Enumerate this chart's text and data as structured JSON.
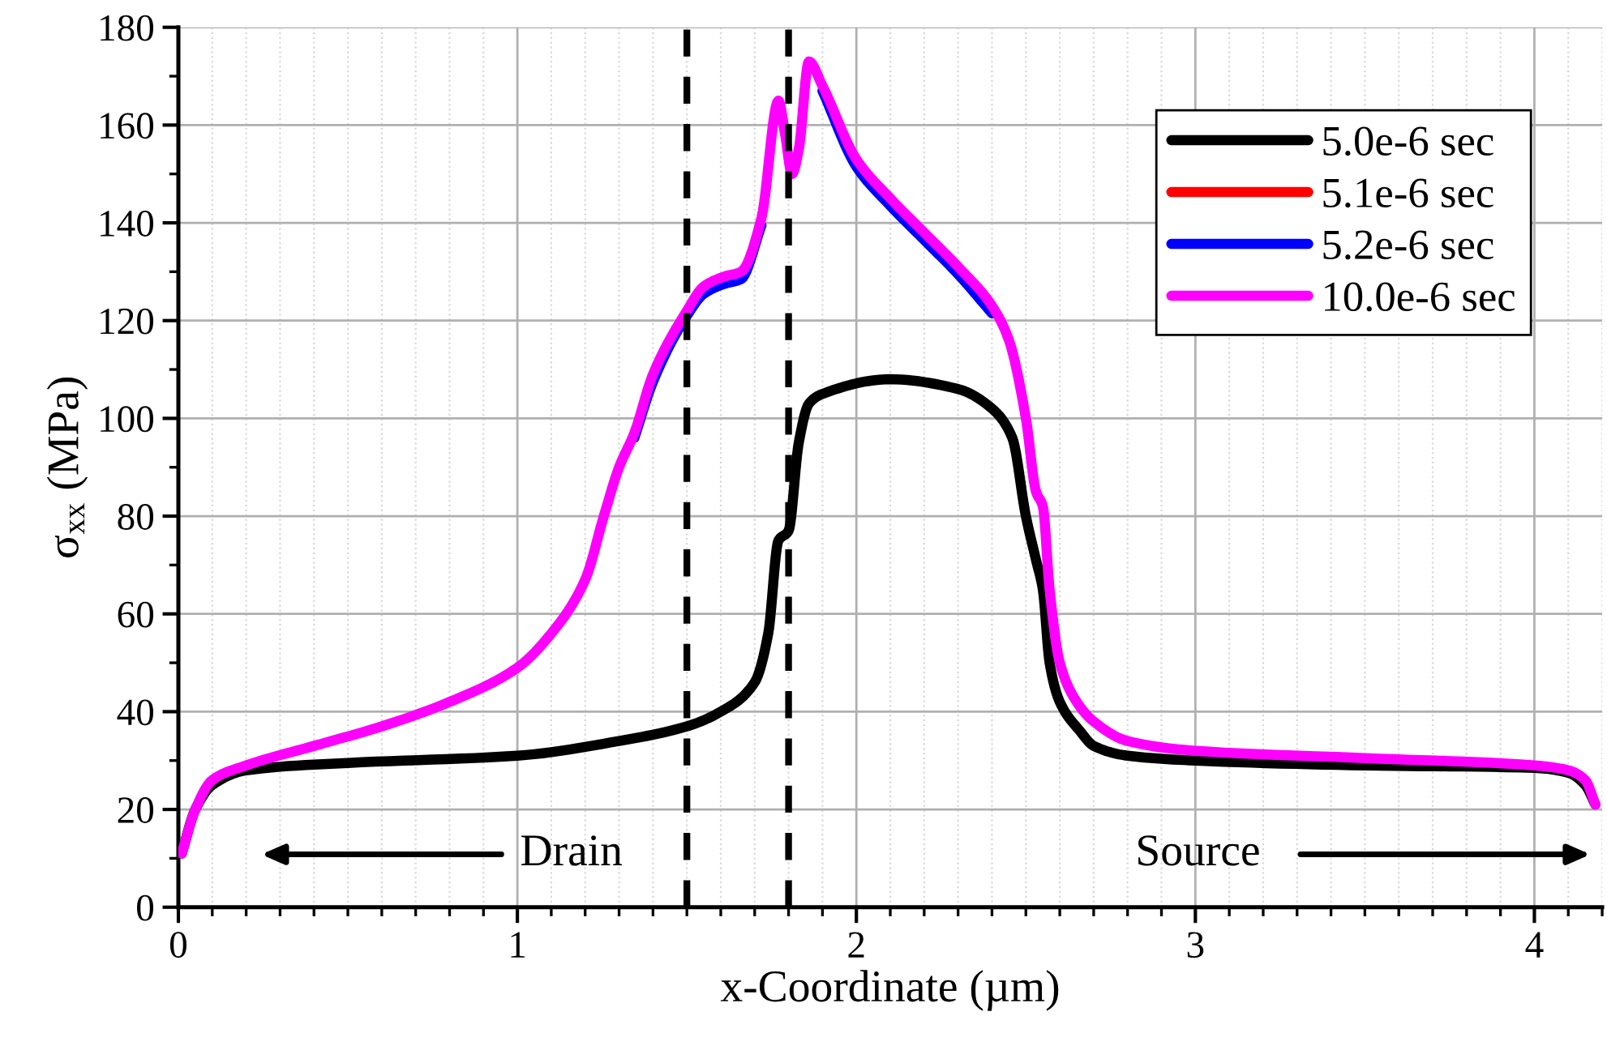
{
  "chart_data": {
    "type": "line",
    "xlabel": "x-Coordinate (µm)",
    "ylabel": "σ$_{xx}$ (MPa)",
    "xlim": [
      0,
      4.2
    ],
    "xticks": [
      0,
      1,
      2,
      3,
      4
    ],
    "ylim": [
      0,
      180
    ],
    "yticks": [
      0,
      20,
      40,
      60,
      80,
      100,
      120,
      140,
      160,
      180
    ],
    "grid": true,
    "legend": "top right",
    "line_style": "solid",
    "marker": "none",
    "series": [
      {
        "name": "5.0e-6 sec",
        "color": "#000000",
        "x": [
          0.01,
          0.05,
          0.1,
          0.2,
          0.5,
          1.0,
          1.3,
          1.5,
          1.6,
          1.7,
          1.74,
          1.77,
          1.8,
          1.83,
          1.86,
          1.9,
          2.1,
          2.3,
          2.4,
          2.46,
          2.5,
          2.53,
          2.55,
          2.57,
          2.6,
          2.66,
          2.7,
          2.8,
          3.0,
          3.5,
          4.0,
          4.1,
          4.15,
          4.18
        ],
        "values": [
          11,
          20,
          25,
          28,
          29.5,
          31,
          34,
          37,
          40,
          46,
          56,
          75,
          77,
          95,
          103,
          105,
          108,
          106,
          102,
          96,
          80,
          71,
          65,
          50,
          42,
          36,
          33,
          31,
          30,
          29,
          28.5,
          27.5,
          25,
          21
        ]
      },
      {
        "name": "5.1e-6 sec",
        "color": "#ff0000"
      },
      {
        "name": "5.2e-6 sec",
        "color": "#0000ff",
        "x": [
          1.345,
          1.4,
          1.5,
          1.55,
          1.61,
          1.66,
          1.72,
          1.8,
          1.9,
          2.0,
          2.1,
          2.2,
          2.3,
          2.4
        ],
        "values": [
          96,
          107.5,
          121,
          125.5,
          127.5,
          128.5,
          139.5,
          null,
          167,
          151.5,
          143.5,
          136.5,
          129.5,
          121.5
        ]
      },
      {
        "name": "10.0e-6 sec",
        "color": "#ff00ff",
        "x": [
          0.01,
          0.05,
          0.1,
          0.2,
          0.4,
          0.6,
          0.8,
          1.0,
          1.1,
          1.2,
          1.255,
          1.3,
          1.345,
          1.4,
          1.5,
          1.55,
          1.61,
          1.66,
          1.72,
          1.77,
          1.79,
          1.81,
          1.83,
          1.86,
          1.9,
          2.0,
          2.1,
          2.2,
          2.3,
          2.4,
          2.45,
          2.5,
          2.53,
          2.55,
          2.57,
          2.6,
          2.65,
          2.7,
          2.8,
          3.0,
          3.5,
          4.0,
          4.1,
          4.15,
          4.18
        ],
        "values": [
          11,
          20,
          26,
          29,
          33,
          37,
          42,
          49,
          56,
          67,
          80,
          90,
          97,
          109,
          122,
          127,
          129,
          130,
          141,
          165,
          158,
          150,
          155,
          173,
          168,
          153,
          145,
          138,
          131,
          123,
          116,
          100,
          85,
          82,
          65,
          50,
          42,
          38,
          34,
          32,
          30.5,
          29,
          28,
          26,
          21
        ]
      }
    ],
    "ref_lines": [
      {
        "axis": "x",
        "value": 1.5,
        "color": "#000000",
        "line_style": "dashed"
      },
      {
        "axis": "x",
        "value": 1.8,
        "color": "#000000",
        "line_style": "dashed"
      }
    ],
    "annotations": [
      "Drain",
      "Source"
    ]
  }
}
